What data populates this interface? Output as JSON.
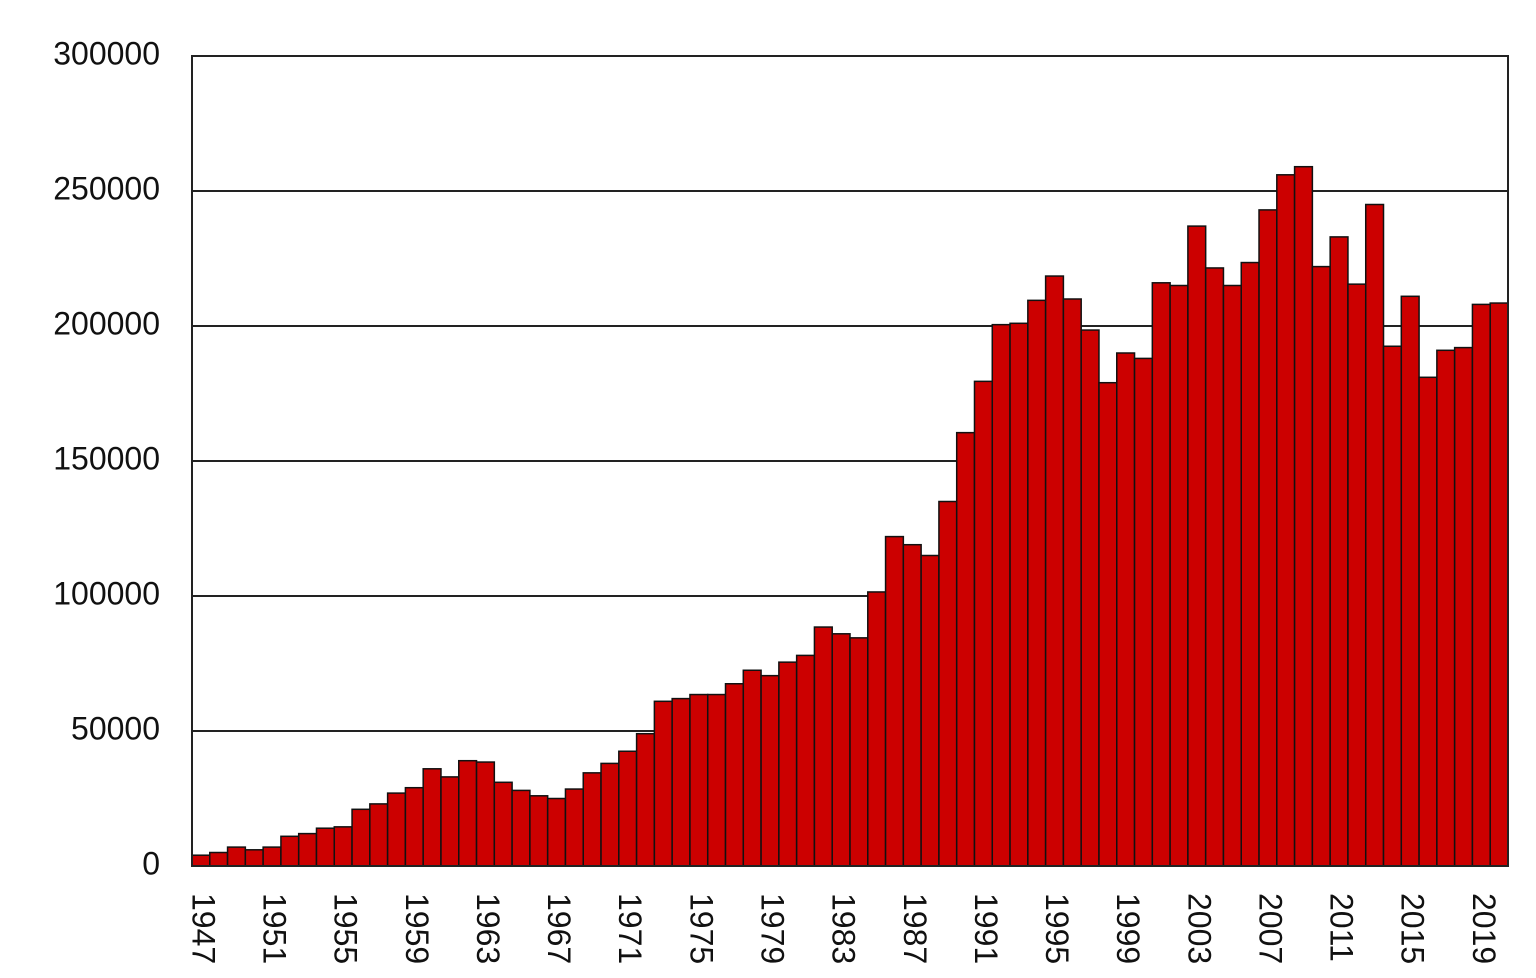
{
  "chart_data": {
    "type": "bar",
    "categories": [
      "1947",
      null,
      null,
      null,
      "1951",
      null,
      null,
      null,
      "1955",
      null,
      null,
      null,
      "1959",
      null,
      null,
      null,
      "1963",
      null,
      null,
      null,
      "1967",
      null,
      null,
      null,
      "1971",
      null,
      null,
      null,
      "1975",
      null,
      null,
      null,
      "1979",
      null,
      null,
      null,
      "1983",
      null,
      null,
      null,
      "1987",
      null,
      null,
      null,
      "1991",
      null,
      null,
      null,
      "1995",
      null,
      null,
      null,
      "1999",
      null,
      null,
      null,
      "2003",
      null,
      null,
      null,
      "2007",
      null,
      null,
      null,
      "2011",
      null,
      null,
      null,
      "2015",
      null,
      null,
      null,
      "2019",
      null
    ],
    "values": [
      4000,
      5000,
      7000,
      6000,
      7000,
      11000,
      12000,
      14000,
      14500,
      21000,
      23000,
      27000,
      29000,
      36000,
      33000,
      39000,
      38500,
      31000,
      28000,
      26000,
      25000,
      28500,
      34500,
      38000,
      42500,
      49000,
      61000,
      62000,
      63500,
      63500,
      67500,
      72500,
      70500,
      75500,
      78000,
      88500,
      86000,
      84500,
      101500,
      122000,
      119000,
      115000,
      135000,
      160500,
      179500,
      200500,
      201000,
      209500,
      218500,
      210000,
      198500,
      179000,
      190000,
      188000,
      216000,
      215000,
      237000,
      221500,
      215000,
      223500,
      243000,
      256000,
      259000,
      222000,
      233000,
      215500,
      245000,
      192500,
      211000,
      181000,
      191000,
      192000,
      208000,
      208500
    ],
    "color": "#cc0000",
    "ylim": [
      0,
      300000
    ],
    "yticks": [
      0,
      50000,
      100000,
      150000,
      200000,
      250000,
      300000
    ],
    "grid": true
  }
}
